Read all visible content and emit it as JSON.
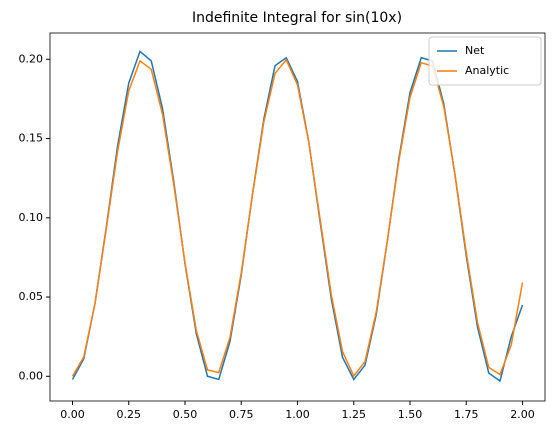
{
  "chart_data": {
    "type": "line",
    "title": "Indefinite Integral for sin(10x)",
    "x": [
      0,
      0.05,
      0.1,
      0.15,
      0.2,
      0.25,
      0.3,
      0.35,
      0.4,
      0.45,
      0.5,
      0.55,
      0.6,
      0.65,
      0.7,
      0.75,
      0.8,
      0.85,
      0.9,
      0.95,
      1.0,
      1.05,
      1.1,
      1.15,
      1.2,
      1.25,
      1.3,
      1.35,
      1.4,
      1.45,
      1.5,
      1.55,
      1.6,
      1.65,
      1.7,
      1.75,
      1.8,
      1.85,
      1.9,
      1.95,
      2.0
    ],
    "series": [
      {
        "name": "Net",
        "color": "#1f77b4",
        "values": [
          -0.002,
          0.011,
          0.046,
          0.094,
          0.145,
          0.185,
          0.205,
          0.199,
          0.169,
          0.123,
          0.071,
          0.027,
          0.0,
          -0.002,
          0.022,
          0.064,
          0.115,
          0.162,
          0.196,
          0.201,
          0.186,
          0.148,
          0.098,
          0.049,
          0.012,
          -0.002,
          0.007,
          0.039,
          0.086,
          0.137,
          0.179,
          0.201,
          0.199,
          0.172,
          0.127,
          0.076,
          0.031,
          0.002,
          -0.003,
          0.025,
          0.045
        ]
      },
      {
        "name": "Analytic",
        "color": "#ff7f0e",
        "values": [
          0,
          0.0122,
          0.046,
          0.0929,
          0.1416,
          0.1801,
          0.199,
          0.1937,
          0.1654,
          0.1211,
          0.0716,
          0.0291,
          0.004,
          0.0023,
          0.0246,
          0.0653,
          0.1146,
          0.1602,
          0.1911,
          0.1997,
          0.1839,
          0.1476,
          0.0996,
          0.0517,
          0.0156,
          0.0002,
          0.0093,
          0.0405,
          0.0863,
          0.1355,
          0.176,
          0.1978,
          0.1958,
          0.1702,
          0.1275,
          0.0781,
          0.034,
          0.0056,
          0.0011,
          0.0198,
          0.0592
        ]
      }
    ],
    "xlim": [
      -0.1,
      2.1
    ],
    "xticks": [
      {
        "value": 0,
        "label": "0.00"
      },
      {
        "value": 0.25,
        "label": "0.25"
      },
      {
        "value": 0.5,
        "label": "0.50"
      },
      {
        "value": 0.75,
        "label": "0.75"
      },
      {
        "value": 1,
        "label": "1.00"
      },
      {
        "value": 1.25,
        "label": "1.25"
      },
      {
        "value": 1.5,
        "label": "1.50"
      },
      {
        "value": 1.75,
        "label": "1.75"
      },
      {
        "value": 2,
        "label": "2.00"
      }
    ],
    "ylim": [
      -0.0156,
      0.2166
    ],
    "yticks": [
      {
        "value": 0,
        "label": "0.00"
      },
      {
        "value": 0.05,
        "label": "0.05"
      },
      {
        "value": 0.1,
        "label": "0.10"
      },
      {
        "value": 0.15,
        "label": "0.15"
      },
      {
        "value": 0.2,
        "label": "0.20"
      }
    ],
    "legend": "upper right"
  }
}
